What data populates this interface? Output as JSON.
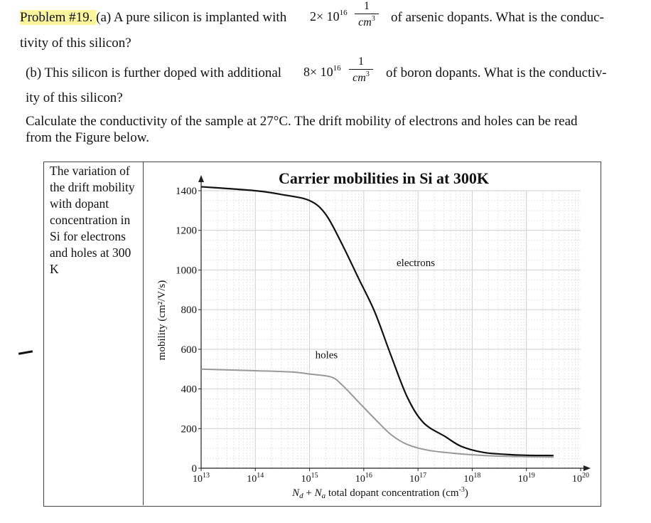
{
  "problem": {
    "label": "Problem #19.",
    "a_intro": "(a) A pure silicon is implanted with",
    "a_coef": "2× 10",
    "a_exp": "16",
    "a_num": "1",
    "a_den": "cm",
    "a_den_exp": "3",
    "a_rest": "of arsenic dopants. What is the conduc-",
    "a_line2": "tivity of this silicon?",
    "b_intro": "(b) This silicon is further doped with additional",
    "b_coef": "8× 10",
    "b_exp": "16",
    "b_num": "1",
    "b_den": "cm",
    "b_den_exp": "3",
    "b_rest": "of boron dopants. What is the conductiv-",
    "b_line2": "ity of this silicon?",
    "calc_line1": "Calculate the conductivity of the sample at 27°C. The drift mobility of electrons and holes can be read",
    "calc_line2": "from the Figure below."
  },
  "caption": "The variation of the drift mobility with dopant concentration in Si for electrons and holes at 300 K",
  "chart_data": {
    "type": "line",
    "title": "Carrier mobilities in Si at 300K",
    "ylabel": "mobility (cm²/V/s)",
    "xlabel": "N_d + N_a total dopant concentration (cm⁻³)",
    "xlabel_parts": {
      "n1": "N",
      "s1": "d",
      "plus": " + ",
      "n2": "N",
      "s2": "a",
      "rest": " total dopant concentration (cm",
      "exp": "-3",
      "close": ")"
    },
    "xscale": "log",
    "xlim_log10": [
      13,
      20
    ],
    "ylim": [
      0,
      1400
    ],
    "yticks": [
      "0",
      "200",
      "400",
      "600",
      "800",
      "1000",
      "1200",
      "1400"
    ],
    "xticks": [
      {
        "base": "10",
        "exp": "13"
      },
      {
        "base": "10",
        "exp": "14"
      },
      {
        "base": "10",
        "exp": "15"
      },
      {
        "base": "10",
        "exp": "16"
      },
      {
        "base": "10",
        "exp": "17"
      },
      {
        "base": "10",
        "exp": "18"
      },
      {
        "base": "10",
        "exp": "19"
      },
      {
        "base": "10",
        "exp": "20"
      }
    ],
    "grid": true,
    "series": [
      {
        "name": "electrons",
        "color": "#111111",
        "points": [
          [
            13.0,
            1420
          ],
          [
            14.0,
            1400
          ],
          [
            14.5,
            1380
          ],
          [
            15.0,
            1350
          ],
          [
            15.3,
            1280
          ],
          [
            15.6,
            1130
          ],
          [
            15.9,
            960
          ],
          [
            16.2,
            790
          ],
          [
            16.5,
            570
          ],
          [
            16.8,
            360
          ],
          [
            17.1,
            230
          ],
          [
            17.5,
            160
          ],
          [
            17.8,
            110
          ],
          [
            18.2,
            80
          ],
          [
            18.6,
            70
          ],
          [
            19.0,
            65
          ],
          [
            19.5,
            64
          ]
        ]
      },
      {
        "name": "holes",
        "color": "#999999",
        "points": [
          [
            13.0,
            500
          ],
          [
            14.0,
            492
          ],
          [
            14.7,
            485
          ],
          [
            15.0,
            475
          ],
          [
            15.4,
            460
          ],
          [
            15.6,
            420
          ],
          [
            15.9,
            335
          ],
          [
            16.2,
            250
          ],
          [
            16.5,
            170
          ],
          [
            16.8,
            120
          ],
          [
            17.2,
            90
          ],
          [
            17.8,
            72
          ],
          [
            18.4,
            62
          ],
          [
            19.0,
            58
          ],
          [
            19.5,
            56
          ]
        ]
      }
    ],
    "annotations": [
      {
        "text": "electrons",
        "x": 16.5,
        "y": 1020
      },
      {
        "text": "holes",
        "x": 15.0,
        "y": 555
      }
    ]
  }
}
